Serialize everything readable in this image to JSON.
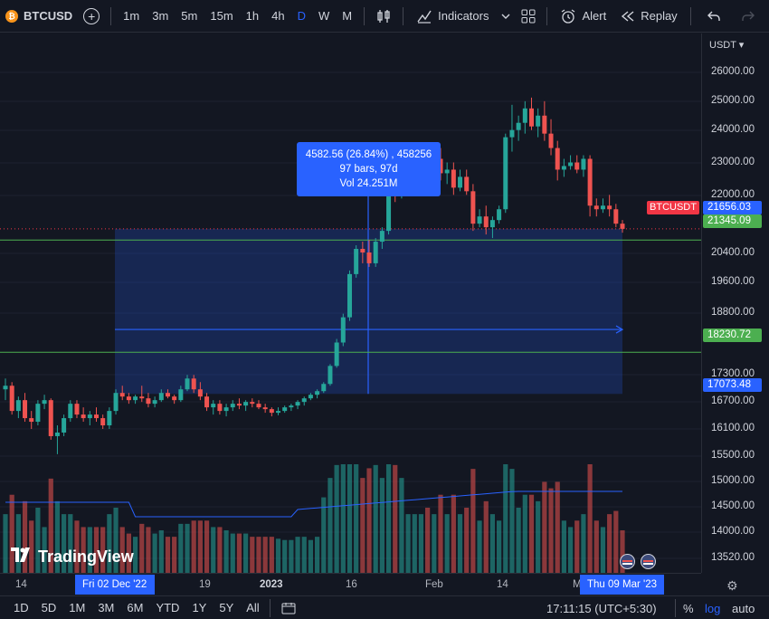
{
  "toolbar": {
    "coin_glyph": "₿",
    "symbol": "BTCUSD",
    "add_symbol": "+",
    "timeframes": [
      "1m",
      "3m",
      "5m",
      "15m",
      "1h",
      "4h",
      "D",
      "W",
      "M"
    ],
    "active_timeframe": "D",
    "indicators_label": "Indicators",
    "alert_label": "Alert",
    "replay_label": "Replay"
  },
  "price_axis": {
    "currency": "USDT",
    "ticks": [
      "26000.00",
      "25000.00",
      "24000.00",
      "23000.00",
      "22000.00",
      "20400.00",
      "19600.00",
      "18800.00",
      "17300.00",
      "16700.00",
      "16100.00",
      "15500.00",
      "15000.00",
      "14500.00",
      "14000.00",
      "13520.00"
    ],
    "tags": [
      {
        "value": "21656.03",
        "color": "#2962ff"
      },
      {
        "value": "21345.09",
        "color": "#4caf50"
      },
      {
        "value": "18230.72",
        "color": "#4caf50"
      },
      {
        "value": "17073.48",
        "color": "#2962ff"
      }
    ]
  },
  "series_label": "BTCUSDT",
  "measure_tooltip": {
    "line1": "4582.56 (26.84%) , 458256",
    "line2": "97 bars, 97d",
    "line3": "Vol 24.251M"
  },
  "time_axis": {
    "labels": [
      {
        "text": "14"
      },
      {
        "text": "19"
      },
      {
        "text": "2023"
      },
      {
        "text": "16"
      },
      {
        "text": "Feb"
      },
      {
        "text": "14"
      },
      {
        "text": "M"
      }
    ],
    "start_tag": "Fri 02 Dec '22",
    "end_tag": "Thu 09 Mar '23"
  },
  "bottom_bar": {
    "ranges": [
      "1D",
      "5D",
      "1M",
      "3M",
      "6M",
      "YTD",
      "1Y",
      "5Y",
      "All"
    ],
    "clock": "17:11:15 (UTC+5:30)",
    "percent": "%",
    "log": "log",
    "auto": "auto"
  },
  "logo_text": "TradingView",
  "chart_data": {
    "type": "candlestick",
    "series_name": "BTCUSDT",
    "y_range": [
      13000,
      26600
    ],
    "last_price": 21656.03,
    "horizontal_lines": [
      21345.09,
      18230.72
    ],
    "measure_range": {
      "from": 17073.48,
      "to": 21656.03,
      "change": 4582.56,
      "change_pct": 26.84,
      "bars": 97
    },
    "candles": [
      [
        17200,
        17500,
        16900,
        17300
      ],
      [
        17300,
        17400,
        16500,
        16600
      ],
      [
        16600,
        17000,
        16400,
        16900
      ],
      [
        16900,
        17100,
        16300,
        16400
      ],
      [
        16400,
        16600,
        16100,
        16300
      ],
      [
        16300,
        16900,
        16200,
        16800
      ],
      [
        16800,
        17050,
        16650,
        16900
      ],
      [
        16900,
        16950,
        15800,
        15900
      ],
      [
        15900,
        16200,
        15400,
        16000
      ],
      [
        16000,
        16500,
        15900,
        16400
      ],
      [
        16400,
        16900,
        16300,
        16800
      ],
      [
        16800,
        16900,
        16400,
        16500
      ],
      [
        16500,
        16700,
        16300,
        16400
      ],
      [
        16400,
        16600,
        16200,
        16500
      ],
      [
        16500,
        16700,
        16300,
        16400
      ],
      [
        16400,
        16500,
        16100,
        16200
      ],
      [
        16200,
        16700,
        16100,
        16600
      ],
      [
        16600,
        17200,
        16500,
        17100
      ],
      [
        17100,
        17300,
        16900,
        17000
      ],
      [
        17000,
        17100,
        16800,
        16900
      ],
      [
        16900,
        17050,
        16800,
        17000
      ],
      [
        17000,
        17300,
        16850,
        16950
      ],
      [
        16950,
        17100,
        16700,
        16800
      ],
      [
        16800,
        17000,
        16700,
        16900
      ],
      [
        16900,
        17200,
        16850,
        17100
      ],
      [
        17100,
        17200,
        16950,
        17000
      ],
      [
        17000,
        17050,
        16800,
        16900
      ],
      [
        16900,
        17300,
        16850,
        17200
      ],
      [
        17200,
        17600,
        17150,
        17500
      ],
      [
        17500,
        17600,
        17100,
        17200
      ],
      [
        17200,
        17400,
        16900,
        17000
      ],
      [
        17000,
        17100,
        16600,
        16700
      ],
      [
        16700,
        16900,
        16500,
        16800
      ],
      [
        16800,
        16900,
        16500,
        16600
      ],
      [
        16600,
        16800,
        16450,
        16700
      ],
      [
        16700,
        16900,
        16600,
        16800
      ],
      [
        16800,
        16950,
        16650,
        16750
      ],
      [
        16750,
        16900,
        16600,
        16850
      ],
      [
        16850,
        16950,
        16700,
        16800
      ],
      [
        16800,
        16900,
        16650,
        16700
      ],
      [
        16700,
        16800,
        16550,
        16650
      ],
      [
        16650,
        16700,
        16450,
        16550
      ],
      [
        16550,
        16700,
        16480,
        16600
      ],
      [
        16600,
        16750,
        16550,
        16700
      ],
      [
        16700,
        16800,
        16600,
        16750
      ],
      [
        16750,
        16900,
        16650,
        16850
      ],
      [
        16850,
        17000,
        16750,
        16950
      ],
      [
        16950,
        17100,
        16900,
        17050
      ],
      [
        17050,
        17200,
        16950,
        17150
      ],
      [
        17150,
        17400,
        17100,
        17350
      ],
      [
        17350,
        17900,
        17300,
        17850
      ],
      [
        17850,
        18600,
        17800,
        18500
      ],
      [
        18500,
        19300,
        18400,
        19200
      ],
      [
        19200,
        20500,
        19100,
        20400
      ],
      [
        20400,
        21200,
        20300,
        21100
      ],
      [
        21100,
        21300,
        20700,
        21000
      ],
      [
        21000,
        21350,
        20600,
        20700
      ],
      [
        20700,
        21400,
        20600,
        21300
      ],
      [
        21300,
        21700,
        21100,
        21600
      ],
      [
        21600,
        23000,
        21500,
        22800
      ],
      [
        22800,
        23200,
        22400,
        22700
      ],
      [
        22700,
        23100,
        22500,
        23000
      ],
      [
        23000,
        23500,
        22900,
        23300
      ],
      [
        23300,
        23700,
        23100,
        23500
      ],
      [
        23500,
        23900,
        23300,
        23700
      ],
      [
        23700,
        23900,
        23200,
        23400
      ],
      [
        23400,
        23800,
        23200,
        23600
      ],
      [
        23600,
        23900,
        23000,
        23200
      ],
      [
        23200,
        23500,
        22900,
        23300
      ],
      [
        23300,
        23500,
        22600,
        22800
      ],
      [
        22800,
        23300,
        22700,
        23100
      ],
      [
        23100,
        23300,
        22600,
        22700
      ],
      [
        22700,
        22900,
        21600,
        21800
      ],
      [
        21800,
        22200,
        21700,
        22000
      ],
      [
        22000,
        22300,
        21500,
        21700
      ],
      [
        21700,
        22000,
        21400,
        21900
      ],
      [
        21900,
        22300,
        21800,
        22200
      ],
      [
        22200,
        24300,
        22100,
        24200
      ],
      [
        24200,
        25100,
        23800,
        24400
      ],
      [
        24400,
        24800,
        24100,
        24600
      ],
      [
        24600,
        25200,
        24300,
        25000
      ],
      [
        25000,
        25300,
        24400,
        24500
      ],
      [
        24500,
        25000,
        24200,
        24800
      ],
      [
        24800,
        25200,
        24100,
        24300
      ],
      [
        24300,
        24700,
        23700,
        23900
      ],
      [
        23900,
        24100,
        23000,
        23300
      ],
      [
        23300,
        23600,
        23100,
        23400
      ],
      [
        23400,
        23700,
        23300,
        23500
      ],
      [
        23500,
        23700,
        23200,
        23300
      ],
      [
        23300,
        23700,
        23100,
        23600
      ],
      [
        23600,
        23700,
        22000,
        22300
      ],
      [
        22300,
        22500,
        22000,
        22200
      ],
      [
        22200,
        22500,
        22100,
        22300
      ],
      [
        22300,
        22600,
        22000,
        22200
      ],
      [
        22200,
        22350,
        21700,
        21800
      ],
      [
        21800,
        21900,
        21550,
        21656
      ]
    ],
    "volume_note": "volume histogram with moving average line"
  }
}
